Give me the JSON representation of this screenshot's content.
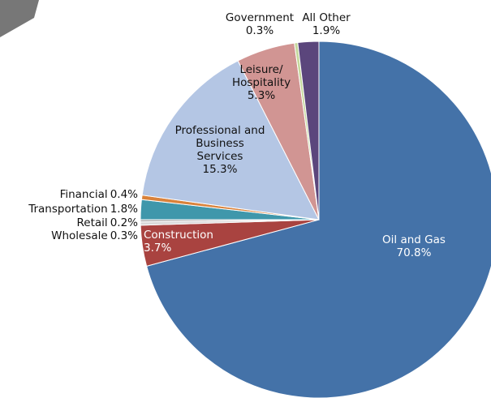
{
  "chart_data": {
    "type": "pie",
    "categories": [
      "Oil and Gas",
      "Construction",
      "Wholesale",
      "Retail",
      "Transportation",
      "Financial",
      "Professional and Business Services",
      "Leisure/ Hospitality",
      "Government",
      "All Other"
    ],
    "values": [
      70.8,
      3.7,
      0.3,
      0.2,
      1.8,
      0.4,
      15.3,
      5.3,
      0.3,
      1.9
    ],
    "value_labels": [
      "70.8%",
      "3.7%",
      "0.3%",
      "0.2%",
      "1.8%",
      "0.4%",
      "15.3%",
      "5.3%",
      "0.3%",
      "1.9%"
    ],
    "colors": [
      "#4472a8",
      "#a94340",
      "#d9d9d9",
      "#b0b0b0",
      "#3f97ab",
      "#d9823b",
      "#b4c6e4",
      "#d19593",
      "#c5d89c",
      "#5b467c"
    ]
  }
}
